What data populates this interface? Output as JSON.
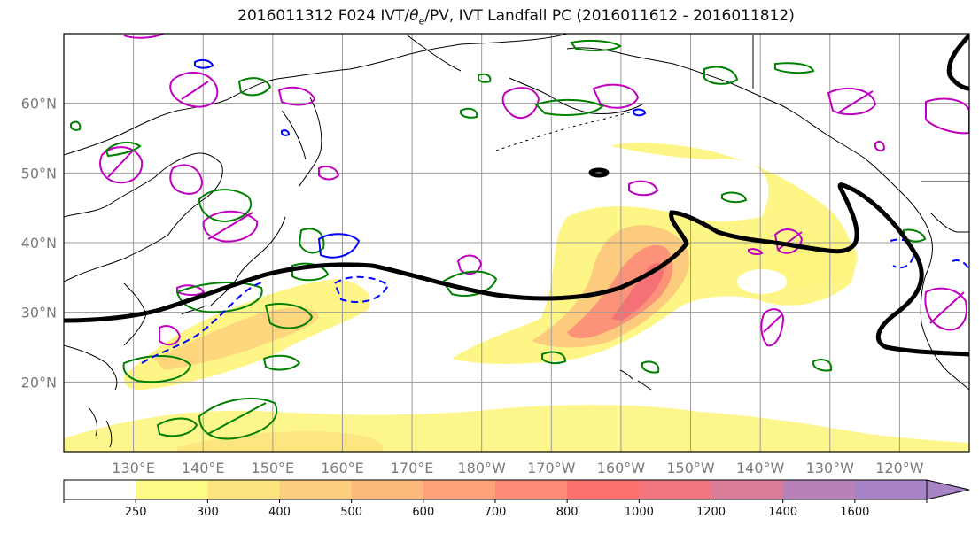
{
  "title": {
    "prefix": "2016011312 F024 IVT/",
    "theta": "θ",
    "theta_sub": "e",
    "suffix": "/PV, IVT Landfall PC (2016011612 - 2016011812)"
  },
  "map": {
    "projection": "equirectangular",
    "lon_range": [
      120,
      250
    ],
    "lat_range": [
      10,
      70
    ],
    "lon_ticks": [
      {
        "lon": 130,
        "label": "130°E"
      },
      {
        "lon": 140,
        "label": "140°E"
      },
      {
        "lon": 150,
        "label": "150°E"
      },
      {
        "lon": 160,
        "label": "160°E"
      },
      {
        "lon": 170,
        "label": "170°E"
      },
      {
        "lon": 180,
        "label": "180°W"
      },
      {
        "lon": 190,
        "label": "170°W"
      },
      {
        "lon": 200,
        "label": "160°W"
      },
      {
        "lon": 210,
        "label": "150°W"
      },
      {
        "lon": 220,
        "label": "140°W"
      },
      {
        "lon": 230,
        "label": "130°W"
      },
      {
        "lon": 240,
        "label": "120°W"
      }
    ],
    "lat_ticks": [
      {
        "lat": 20,
        "label": "20°N"
      },
      {
        "lat": 30,
        "label": "30°N"
      },
      {
        "lat": 40,
        "label": "40°N"
      },
      {
        "lat": 50,
        "label": "50°N"
      },
      {
        "lat": 60,
        "label": "60°N"
      }
    ],
    "grid": true
  },
  "colorbar": {
    "levels": [
      250,
      300,
      400,
      500,
      600,
      700,
      800,
      1000,
      1200,
      1400,
      1600
    ],
    "colors": [
      "#ffffff",
      "#fdfb86",
      "#fde47e",
      "#fdce7d",
      "#fdb97c",
      "#fda27a",
      "#fd8b78",
      "#fb6f6f",
      "#f0757f",
      "#d97d98",
      "#b882b8",
      "#a883c5"
    ],
    "extend": "max"
  },
  "colors": {
    "landfall_line": "#000000",
    "theta_e_contour": "#008000",
    "pv_contour": "#c000c0",
    "negative_contour": "#0000ff",
    "coastline": "#000000"
  }
}
